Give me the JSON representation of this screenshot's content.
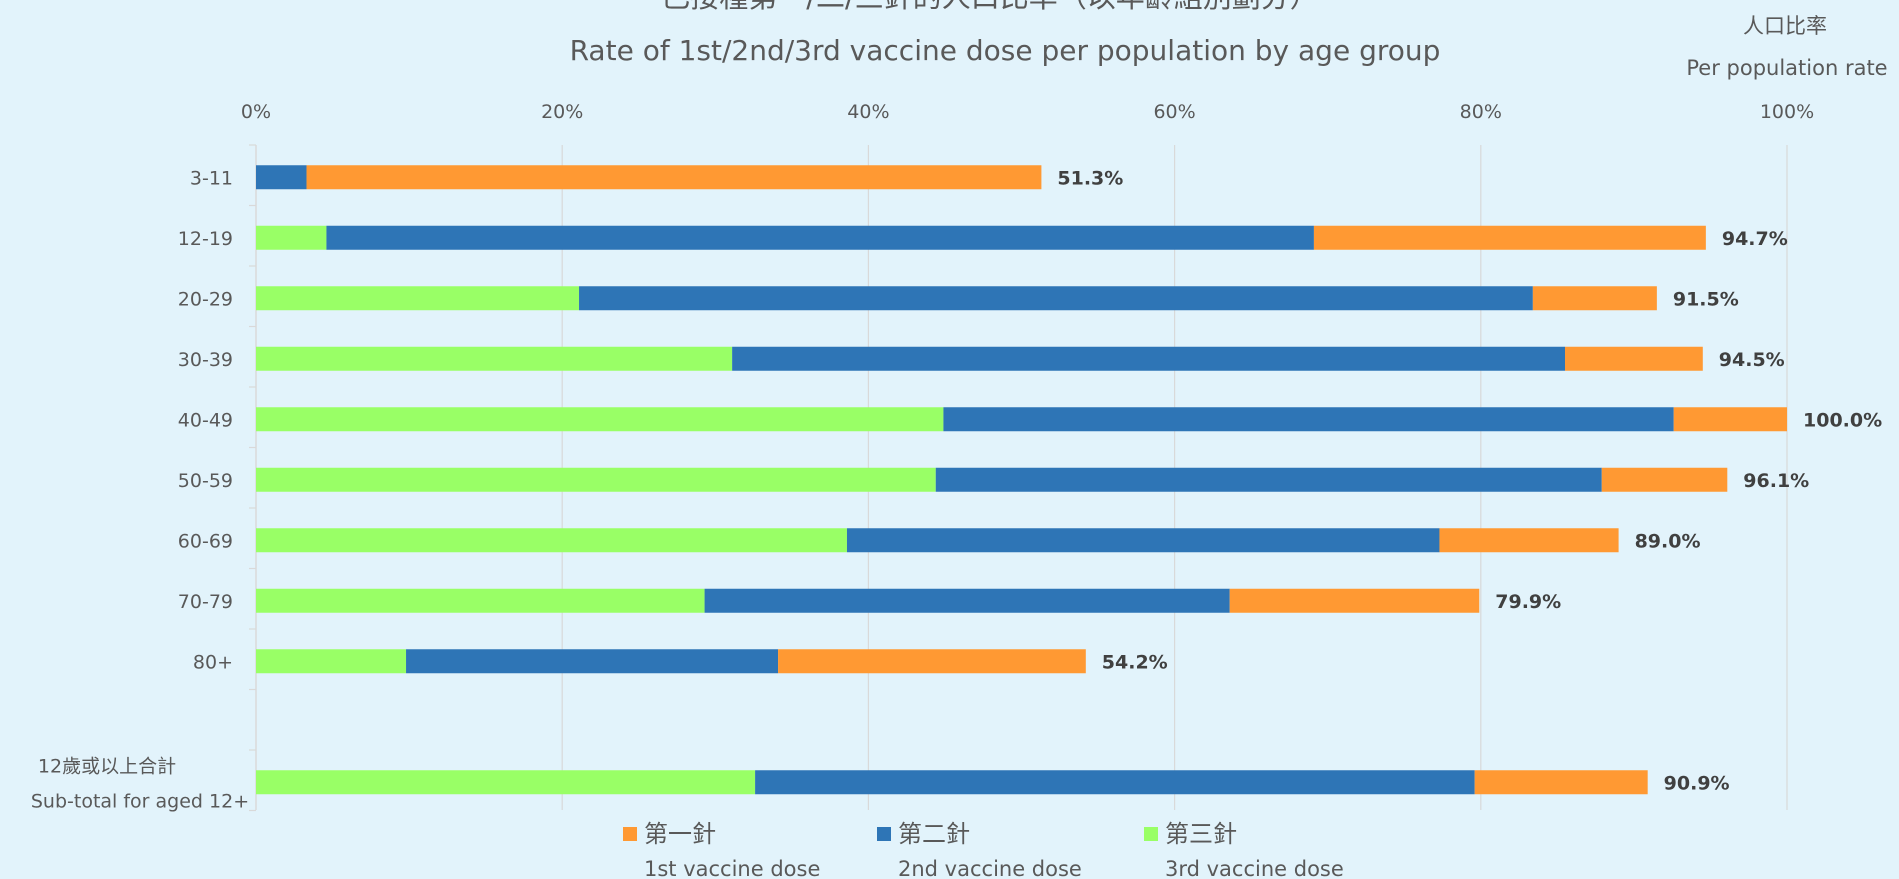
{
  "chart_data": {
    "type": "bar",
    "orientation": "horizontal",
    "stacked": true,
    "title": "已接種第一/二/三針的人口比率（以年齡組別劃分）",
    "subtitle": "Rate of 1st/2nd/3rd vaccine dose per population by age group",
    "axis_label_zh": "人口比率",
    "axis_label_en": "Per population rate",
    "xlim": [
      0,
      100
    ],
    "ticks": [
      "0%",
      "20%",
      "40%",
      "60%",
      "80%",
      "100%"
    ],
    "tick_values": [
      0,
      20,
      40,
      60,
      80,
      100
    ],
    "grid": true,
    "categories": [
      {
        "zh": "",
        "en": "3-11"
      },
      {
        "zh": "",
        "en": "12-19"
      },
      {
        "zh": "",
        "en": "20-29"
      },
      {
        "zh": "",
        "en": "30-39"
      },
      {
        "zh": "",
        "en": "40-49"
      },
      {
        "zh": "",
        "en": "50-59"
      },
      {
        "zh": "",
        "en": "60-69"
      },
      {
        "zh": "",
        "en": "70-79"
      },
      {
        "zh": "",
        "en": "80+"
      },
      {
        "zh": "",
        "en": ""
      },
      {
        "zh": "12歲或以上合計",
        "en": "Sub-total for aged 12+"
      }
    ],
    "series": [
      {
        "name_zh": "第三針",
        "name_en": "3rd vaccine dose",
        "color": "#99FF66",
        "values": [
          0,
          4.6,
          21.1,
          31.1,
          44.9,
          44.4,
          38.6,
          29.3,
          9.8,
          null,
          32.6
        ]
      },
      {
        "name_zh": "第二針",
        "name_en": "2nd vaccine dose",
        "color": "#2E75B6",
        "values": [
          3.3,
          64.5,
          62.3,
          54.4,
          47.7,
          43.5,
          38.7,
          34.3,
          24.3,
          null,
          47.0
        ]
      },
      {
        "name_zh": "第一針",
        "name_en": "1st vaccine dose",
        "color": "#FF9933",
        "values": [
          48.0,
          25.6,
          8.1,
          9.0,
          7.4,
          8.2,
          11.7,
          16.3,
          20.1,
          null,
          11.3
        ]
      }
    ],
    "totals": [
      "51.3%",
      "94.7%",
      "91.5%",
      "94.5%",
      "100.0%",
      "96.1%",
      "89.0%",
      "79.9%",
      "54.2%",
      "",
      "90.9%"
    ],
    "legend": {
      "placement": "bottom",
      "order": [
        2,
        1,
        0
      ]
    },
    "colors": {
      "background": "#E2F3FB",
      "grid": "#D9D9D9",
      "text": "#595959",
      "total_text": "#404040"
    }
  }
}
